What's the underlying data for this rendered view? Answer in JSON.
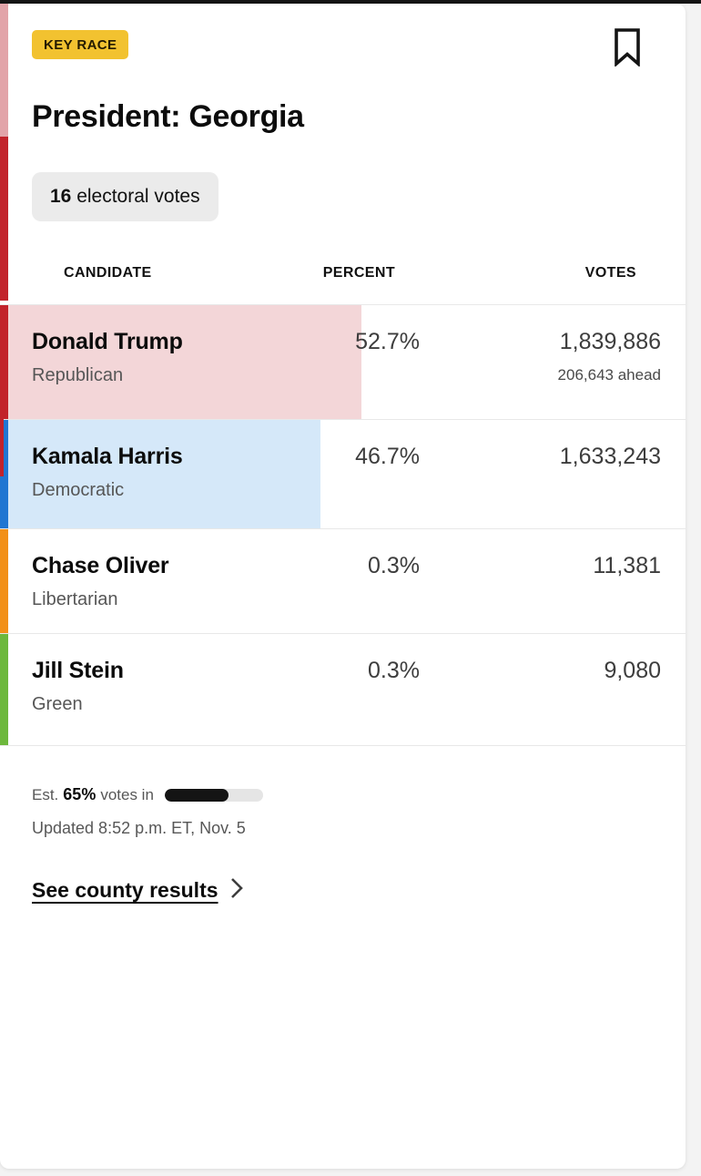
{
  "page": {
    "top_bar_color": "#141414",
    "side_bg": "#f3f3f3"
  },
  "card": {
    "badge": {
      "label": "KEY RACE",
      "bg": "#f2c230",
      "text_color": "#231a00"
    },
    "bookmark_icon": "bookmark-outline",
    "title": "President: Georgia",
    "electoral_votes": {
      "count": "16",
      "label": "electoral votes"
    },
    "table": {
      "headers": {
        "candidate": "CANDIDATE",
        "percent": "PERCENT",
        "votes": "VOTES"
      },
      "rows": [
        {
          "name": "Donald Trump",
          "party": "Republican",
          "percent": "52.7%",
          "pct": 52.7,
          "votes": "1,839,886",
          "note": "206,643 ahead",
          "color": "#c2232b",
          "row_bg": "#f3d6d8"
        },
        {
          "name": "Kamala Harris",
          "party": "Democratic",
          "percent": "46.7%",
          "pct": 46.7,
          "votes": "1,633,243",
          "note": "",
          "color": "#2176d2",
          "row_bg": "#d5e8f9"
        },
        {
          "name": "Chase Oliver",
          "party": "Libertarian",
          "percent": "0.3%",
          "pct": 0.3,
          "votes": "11,381",
          "note": "",
          "color": "#f29018",
          "row_bg": "#ffffff"
        },
        {
          "name": "Jill Stein",
          "party": "Green",
          "percent": "0.3%",
          "pct": 0.3,
          "votes": "9,080",
          "note": "",
          "color": "#6db83c",
          "row_bg": "#ffffff"
        }
      ]
    },
    "reporting": {
      "prefix": "Est.",
      "percent_in": "65%",
      "suffix": "votes in",
      "progress_pct": 65,
      "fill_color": "#141414",
      "track_color": "#e5e5e5"
    },
    "updated": "Updated 8:52 p.m. ET, Nov. 5",
    "county_link": {
      "label": "See county results"
    },
    "left_rail": {
      "top_color": "#e2a4a9",
      "mid_color": "#c2232b"
    }
  }
}
